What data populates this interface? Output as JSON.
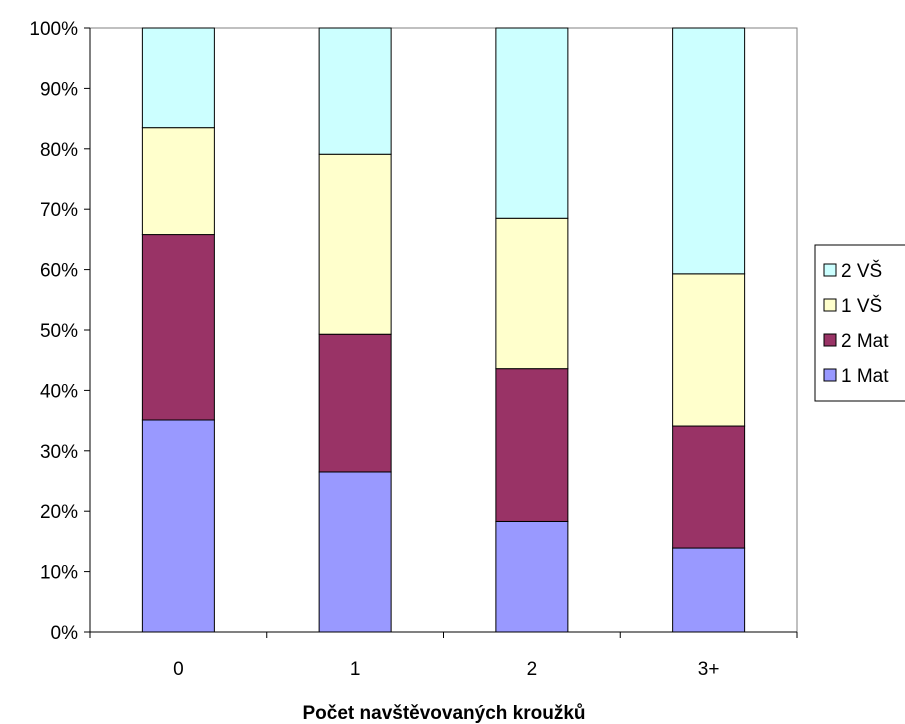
{
  "chart_data": {
    "type": "bar",
    "stacked": true,
    "percent_stacked": true,
    "categories": [
      "0",
      "1",
      "2",
      "3+"
    ],
    "series": [
      {
        "name": "1 Mat",
        "values": [
          35.1,
          26.5,
          18.3,
          13.9
        ],
        "color": "#9999ff"
      },
      {
        "name": "2 Mat",
        "values": [
          30.7,
          22.8,
          25.3,
          20.2
        ],
        "color": "#993366"
      },
      {
        "name": "1 VŠ",
        "values": [
          17.7,
          29.8,
          24.9,
          25.2
        ],
        "color": "#ffffcc"
      },
      {
        "name": "2 VŠ",
        "values": [
          16.5,
          20.9,
          31.5,
          40.7
        ],
        "color": "#ccffff"
      }
    ],
    "title": "",
    "xlabel": "Počet navštěvovaných kroužků",
    "ylabel": "",
    "ylim": [
      0,
      100
    ],
    "yticks": [
      "0%",
      "10%",
      "20%",
      "30%",
      "40%",
      "50%",
      "60%",
      "70%",
      "80%",
      "90%",
      "100%"
    ],
    "legend_position": "right",
    "legend_order": [
      "2 VŠ",
      "1 VŠ",
      "2 Mat",
      "1 Mat"
    ],
    "grid": false
  }
}
